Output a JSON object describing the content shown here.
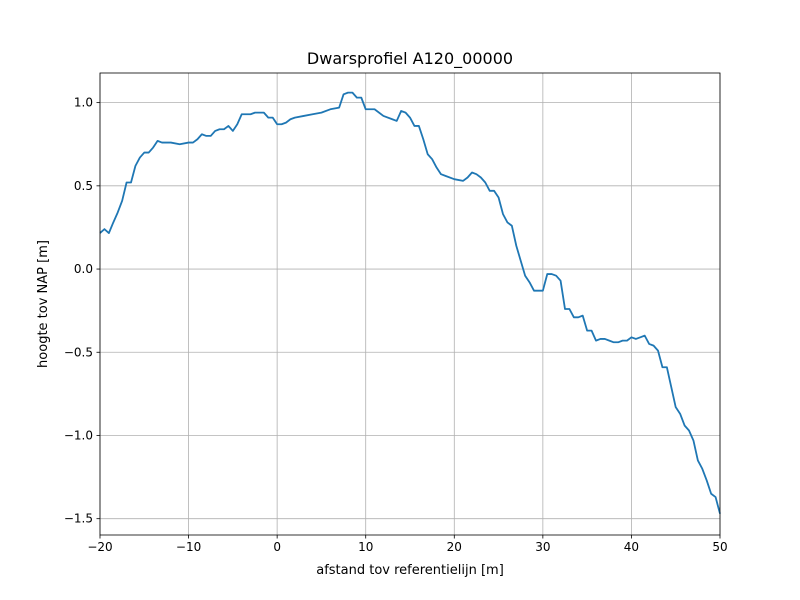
{
  "chart_data": {
    "type": "line",
    "title": "Dwarsprofiel A120_00000",
    "x_label": "afstand tov referentielijn [m]",
    "y_label": "hoogte tov NAP [m]",
    "color": "#1f77b4",
    "grid": true,
    "xlim": [
      -20,
      50
    ],
    "ylim": [
      -1.598,
      1.178
    ],
    "xticks": [
      {
        "value": -20,
        "label": "−20"
      },
      {
        "value": -10,
        "label": "−10"
      },
      0,
      10,
      20,
      30,
      40,
      50
    ],
    "yticks": [
      {
        "value": -1.5,
        "label": "−1.5"
      },
      {
        "value": -1.0,
        "label": "−1.0"
      },
      {
        "value": -0.5,
        "label": "−0.5"
      },
      {
        "value": 0,
        "label": "0.0"
      },
      {
        "value": 0.5,
        "label": "0.5"
      },
      {
        "value": 1.0,
        "label": "1.0"
      }
    ],
    "x": [
      -20,
      -19.5,
      -19,
      -18.5,
      -18,
      -17.5,
      -17,
      -16.5,
      -16,
      -15.5,
      -15,
      -14.5,
      -14,
      -13.5,
      -13,
      -12.5,
      -12,
      -11,
      -10,
      -9.5,
      -9,
      -8.5,
      -8,
      -7.5,
      -7,
      -6.5,
      -6,
      -5.5,
      -5,
      -4.5,
      -4,
      -3.5,
      -3,
      -2.5,
      -2,
      -1.5,
      -1,
      -0.5,
      0,
      0.5,
      1,
      1.5,
      2,
      3,
      4,
      5,
      6,
      7,
      7.5,
      8,
      8.5,
      9,
      9.5,
      10,
      11,
      12,
      13,
      13.5,
      14,
      14.5,
      15,
      15.5,
      16,
      16.5,
      17,
      17.5,
      18,
      18.5,
      19,
      20,
      21,
      21.5,
      22,
      22.5,
      23,
      23.5,
      24,
      24.5,
      25,
      25.5,
      26,
      26.5,
      27,
      27.5,
      28,
      28.5,
      29,
      29.5,
      30,
      30.5,
      31,
      31.5,
      32,
      32.5,
      33,
      33.5,
      34,
      34.5,
      35,
      35.5,
      36,
      36.5,
      37,
      37.5,
      38,
      38.5,
      39,
      39.5,
      40,
      40.5,
      41,
      41.5,
      42,
      42.5,
      43,
      43.5,
      44,
      44.5,
      45,
      45.5,
      46,
      46.5,
      47,
      47.5,
      48,
      48.5,
      49,
      49.5,
      50
    ],
    "values": [
      0.216,
      0.24,
      0.216,
      0.28,
      0.34,
      0.41,
      0.52,
      0.52,
      0.62,
      0.67,
      0.7,
      0.7,
      0.73,
      0.77,
      0.76,
      0.76,
      0.76,
      0.75,
      0.76,
      0.76,
      0.78,
      0.81,
      0.8,
      0.8,
      0.83,
      0.84,
      0.84,
      0.86,
      0.83,
      0.87,
      0.93,
      0.93,
      0.93,
      0.94,
      0.94,
      0.94,
      0.91,
      0.91,
      0.87,
      0.87,
      0.88,
      0.9,
      0.91,
      0.92,
      0.93,
      0.94,
      0.96,
      0.97,
      1.05,
      1.06,
      1.06,
      1.03,
      1.03,
      0.96,
      0.96,
      0.92,
      0.9,
      0.89,
      0.95,
      0.94,
      0.91,
      0.86,
      0.86,
      0.78,
      0.69,
      0.66,
      0.61,
      0.57,
      0.56,
      0.54,
      0.53,
      0.55,
      0.58,
      0.57,
      0.55,
      0.52,
      0.47,
      0.47,
      0.43,
      0.33,
      0.28,
      0.26,
      0.14,
      0.05,
      -0.04,
      -0.08,
      -0.13,
      -0.13,
      -0.13,
      -0.03,
      -0.03,
      -0.04,
      -0.07,
      -0.24,
      -0.24,
      -0.29,
      -0.29,
      -0.28,
      -0.37,
      -0.37,
      -0.43,
      -0.42,
      -0.42,
      -0.43,
      -0.44,
      -0.44,
      -0.43,
      -0.43,
      -0.41,
      -0.42,
      -0.41,
      -0.4,
      -0.45,
      -0.46,
      -0.49,
      -0.59,
      -0.59,
      -0.71,
      -0.83,
      -0.87,
      -0.94,
      -0.97,
      -1.03,
      -1.15,
      -1.2,
      -1.27,
      -1.35,
      -1.37,
      -1.47
    ]
  }
}
